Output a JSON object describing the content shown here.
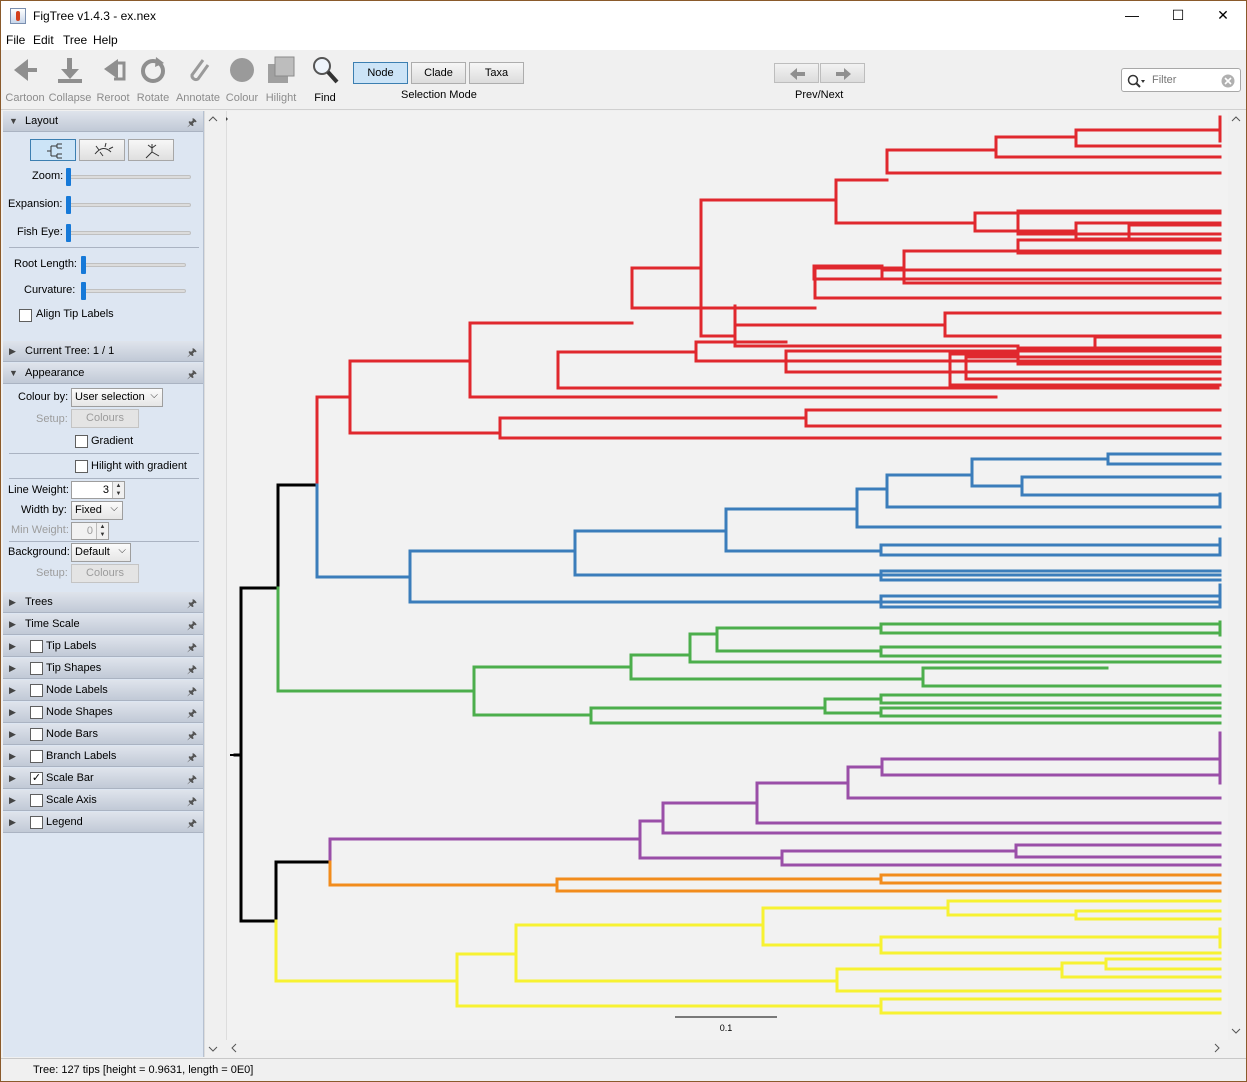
{
  "window": {
    "title": "FigTree v1.4.3 - ex.nex",
    "minimize": "—",
    "maximize": "☐",
    "close": "✕"
  },
  "menu": [
    "File",
    "Edit",
    "Tree",
    "Help"
  ],
  "toolbar": {
    "tools": [
      {
        "label": "Cartoon",
        "icon": "cartoon-icon"
      },
      {
        "label": "Collapse",
        "icon": "collapse-icon"
      },
      {
        "label": "Reroot",
        "icon": "reroot-icon"
      },
      {
        "label": "Rotate",
        "icon": "rotate-icon"
      },
      {
        "label": "Annotate",
        "icon": "annotate-icon"
      },
      {
        "label": "Colour",
        "icon": "colour-icon"
      },
      {
        "label": "Hilight",
        "icon": "hilight-icon"
      },
      {
        "label": "Find",
        "icon": "find-icon"
      }
    ],
    "selection_mode": {
      "caption": "Selection Mode",
      "options": [
        "Node",
        "Clade",
        "Taxa"
      ],
      "selected": "Node"
    },
    "prev_next": {
      "caption": "Prev/Next",
      "prev": "◀",
      "next": "▶"
    },
    "filter": {
      "placeholder": "Filter"
    }
  },
  "panel": {
    "layout": {
      "title": "Layout",
      "zoom": "Zoom:",
      "expansion": "Expansion:",
      "fish_eye": "Fish Eye:",
      "root_length": "Root Length:",
      "curvature": "Curvature:",
      "align_tip_labels": "Align Tip Labels"
    },
    "current_tree": "Current Tree: 1 / 1",
    "appearance": {
      "title": "Appearance",
      "colour_by": "Colour by:",
      "colour_by_value": "User selection",
      "setup": "Setup:",
      "colours": "Colours",
      "gradient": "Gradient",
      "hilight_gradient": "Hilight with gradient",
      "line_weight": "Line Weight:",
      "line_weight_value": "3",
      "width_by": "Width by:",
      "width_by_value": "Fixed",
      "min_weight": "Min Weight:",
      "min_weight_value": "0",
      "background": "Background:",
      "background_value": "Default"
    },
    "sections": [
      {
        "title": "Trees",
        "checkbox": false
      },
      {
        "title": "Time Scale",
        "checkbox": false
      },
      {
        "title": "Tip Labels",
        "checkbox": true,
        "checked": false
      },
      {
        "title": "Tip Shapes",
        "checkbox": true,
        "checked": false
      },
      {
        "title": "Node Labels",
        "checkbox": true,
        "checked": false
      },
      {
        "title": "Node Shapes",
        "checkbox": true,
        "checked": false
      },
      {
        "title": "Node Bars",
        "checkbox": true,
        "checked": false
      },
      {
        "title": "Branch Labels",
        "checkbox": true,
        "checked": false
      },
      {
        "title": "Scale Bar",
        "checkbox": true,
        "checked": true
      },
      {
        "title": "Scale Axis",
        "checkbox": true,
        "checked": false
      },
      {
        "title": "Legend",
        "checkbox": true,
        "checked": false
      }
    ]
  },
  "tree": {
    "scale_bar_label": "0.1",
    "colors": {
      "root": "#000000",
      "red": "#e0282e",
      "blue": "#3b7dbb",
      "green": "#4cae4c",
      "purple": "#9a4fa8",
      "orange": "#f28c1c",
      "yellow": "#f7f232"
    }
  },
  "status": "Tree: 127 tips [height = 0.9631, length = 0E0]"
}
